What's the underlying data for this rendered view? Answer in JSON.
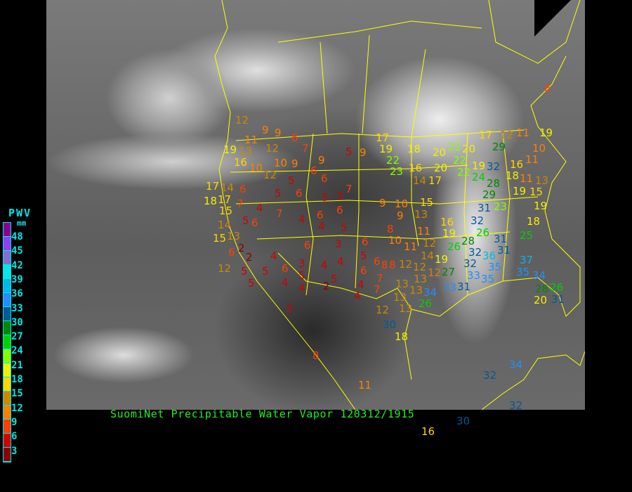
{
  "title": "SuomiNet Precipitable Water Vapor 120312/1915",
  "legend": {
    "title": "PWV",
    "unit": "mm",
    "labels": [
      "48",
      "45",
      "42",
      "39",
      "36",
      "33",
      "30",
      "27",
      "24",
      "21",
      "18",
      "15",
      "12",
      "9",
      "6",
      "3"
    ],
    "colors": [
      "#8b0090",
      "#9040f0",
      "#8070d0",
      "#00e8e8",
      "#00b8e8",
      "#1e90ff",
      "#005a9a",
      "#008800",
      "#00d000",
      "#80ff00",
      "#f0f000",
      "#ffd700",
      "#cc8800",
      "#ff8000",
      "#ff4000",
      "#d00000",
      "#8b0000"
    ]
  },
  "border_color": "#ffff00",
  "stations": [
    12,
    9,
    9,
    6,
    7,
    19,
    13,
    11,
    12,
    9,
    9,
    6,
    6,
    16,
    10,
    12,
    10,
    5,
    5,
    9,
    17,
    19,
    17,
    14,
    6,
    5,
    6,
    5,
    5,
    7,
    18,
    17,
    7,
    15,
    4,
    6,
    6,
    4,
    7,
    5,
    6,
    14,
    15,
    13,
    4,
    5,
    2,
    4,
    6,
    3,
    6,
    6,
    2,
    12,
    5,
    5,
    6,
    3,
    4,
    4,
    5,
    6,
    8,
    6,
    5,
    4,
    4,
    5,
    2,
    5,
    4,
    7,
    7,
    4,
    3,
    8,
    11,
    16,
    30,
    6,
    22,
    23,
    16,
    18,
    14,
    17,
    20,
    20,
    22,
    22,
    20,
    22,
    19,
    32,
    24,
    28,
    29,
    17,
    12,
    11,
    19,
    10,
    11,
    29,
    16,
    18,
    11,
    13,
    19,
    15,
    19,
    18,
    25,
    9,
    10,
    9,
    13,
    15,
    8,
    10,
    11,
    12,
    11,
    16,
    19,
    23,
    31,
    32,
    26,
    31,
    31,
    28,
    26,
    8,
    12,
    14,
    19,
    32,
    32,
    33,
    27,
    12,
    12,
    13,
    13,
    13,
    13,
    12,
    13,
    26,
    34,
    33,
    31,
    36,
    35,
    35,
    35,
    37,
    34,
    28,
    26,
    20,
    31,
    30,
    18,
    34,
    32,
    32,
    36
  ]
}
